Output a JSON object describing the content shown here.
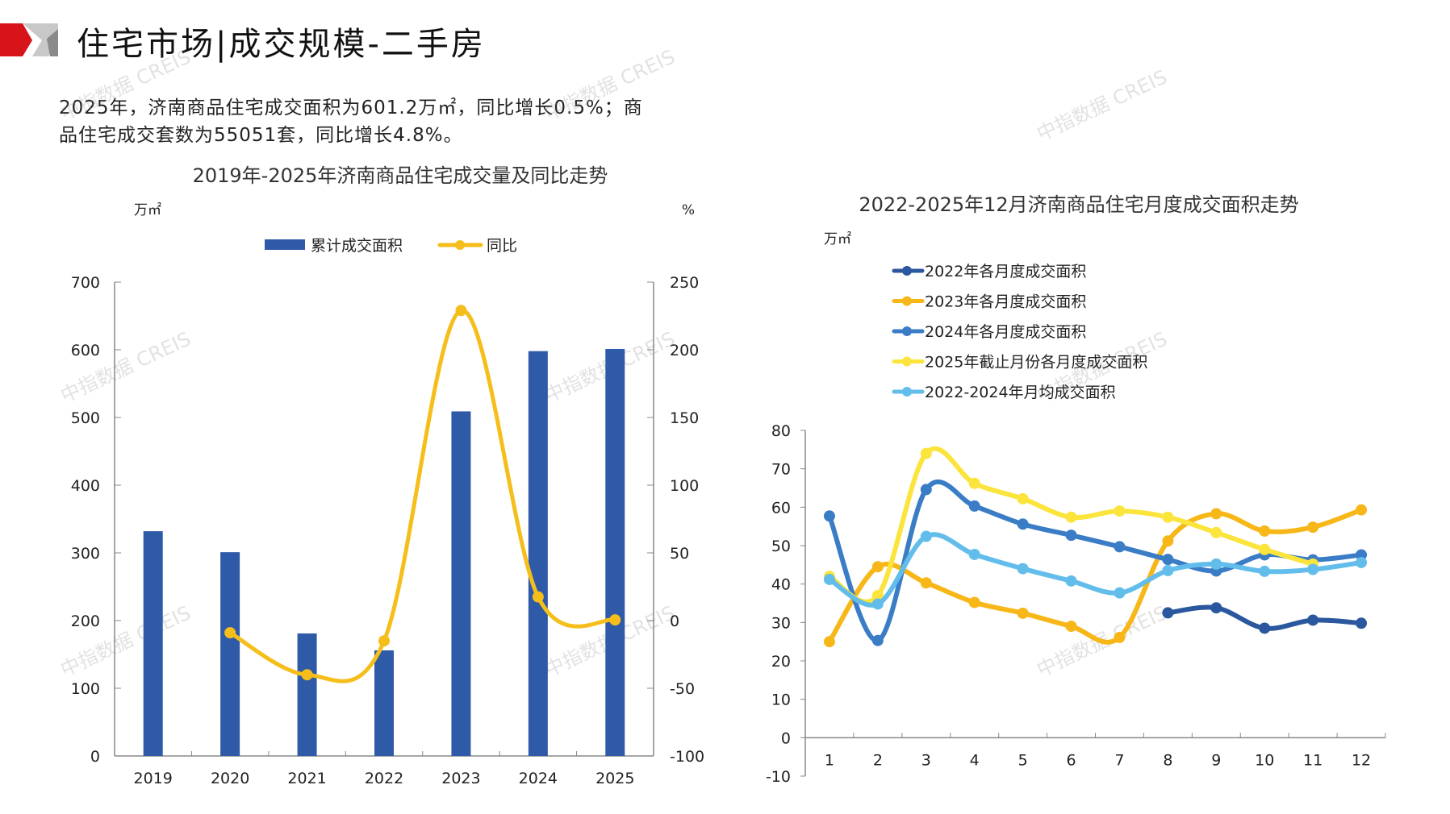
{
  "header": {
    "title": "住宅市场|成交规模-二手房",
    "brand_colors": [
      "#D7141A",
      "#BDBDBD",
      "#8A8A8A"
    ]
  },
  "summary": {
    "line1": "2025年，济南商品住宅成交面积为601.2万㎡，同比增长0.5%；商",
    "line2": "品住宅成交套数为55051套，同比增长4.8%。"
  },
  "watermark": "中指数据 CREIS",
  "chart_data": [
    {
      "type": "bar+line",
      "title": "2019年-2025年济南商品住宅成交量及同比走势",
      "y_unit_left": "万㎡",
      "y_unit_right": "%",
      "categories": [
        "2019",
        "2020",
        "2021",
        "2022",
        "2023",
        "2024",
        "2025"
      ],
      "legend_placement": "top",
      "series": [
        {
          "name": "累计成交面积",
          "type": "bar",
          "axis": "left",
          "color": "#2E5AA8",
          "values": [
            332,
            301,
            181,
            156,
            509,
            598,
            601.2
          ]
        },
        {
          "name": "同比",
          "type": "line",
          "axis": "right",
          "color": "#F5BE1A",
          "smooth": true,
          "values": [
            null,
            -9,
            -40,
            -15,
            229,
            17.5,
            0.5
          ]
        }
      ],
      "ylim_left": [
        0,
        700
      ],
      "ylim_right": [
        -100,
        250
      ],
      "yticks_left": [
        "0",
        "100",
        "200",
        "300",
        "400",
        "500",
        "600",
        "700"
      ],
      "yticks_right": [
        "-100",
        "-50",
        "0",
        "50",
        "100",
        "150",
        "200",
        "250"
      ],
      "grid": false
    },
    {
      "type": "line",
      "title": "2022-2025年12月济南商品住宅月度成交面积走势",
      "y_unit": "万㎡",
      "categories": [
        "1",
        "2",
        "3",
        "4",
        "5",
        "6",
        "7",
        "8",
        "9",
        "10",
        "11",
        "12"
      ],
      "legend_placement": "top",
      "ylim": [
        -10,
        80
      ],
      "yticks": [
        "-10",
        "0",
        "10",
        "20",
        "30",
        "40",
        "50",
        "60",
        "70",
        "80"
      ],
      "grid": false,
      "series": [
        {
          "name": "2022年各月度成交面积",
          "color": "#2B579E",
          "values": [
            null,
            null,
            null,
            null,
            null,
            null,
            null,
            32.5,
            33.8,
            28.5,
            30.6,
            29.8
          ]
        },
        {
          "name": "2023年各月度成交面积",
          "color": "#F7B718",
          "values": [
            25,
            44.5,
            40.3,
            35.2,
            32.4,
            29,
            26.1,
            51.2,
            58.3,
            53.8,
            54.8,
            59.3
          ]
        },
        {
          "name": "2024年各月度成交面积",
          "color": "#3A7DC6",
          "values": [
            57.7,
            25.3,
            64.6,
            60.3,
            55.6,
            52.7,
            49.7,
            46.4,
            43.4,
            47.6,
            46.3,
            47.6
          ]
        },
        {
          "name": "2025年截止月份各月度成交面积",
          "color": "#FBE43C",
          "values": [
            42,
            37,
            74,
            66.2,
            62.2,
            57.4,
            59,
            57.4,
            53.4,
            49,
            45.2,
            null
          ]
        },
        {
          "name": "2022-2024年月均成交面积",
          "color": "#63BDEB",
          "values": [
            41.2,
            34.8,
            52.4,
            47.7,
            44,
            40.8,
            37.7,
            43.5,
            45.2,
            43.3,
            43.8,
            45.6
          ]
        }
      ]
    }
  ]
}
